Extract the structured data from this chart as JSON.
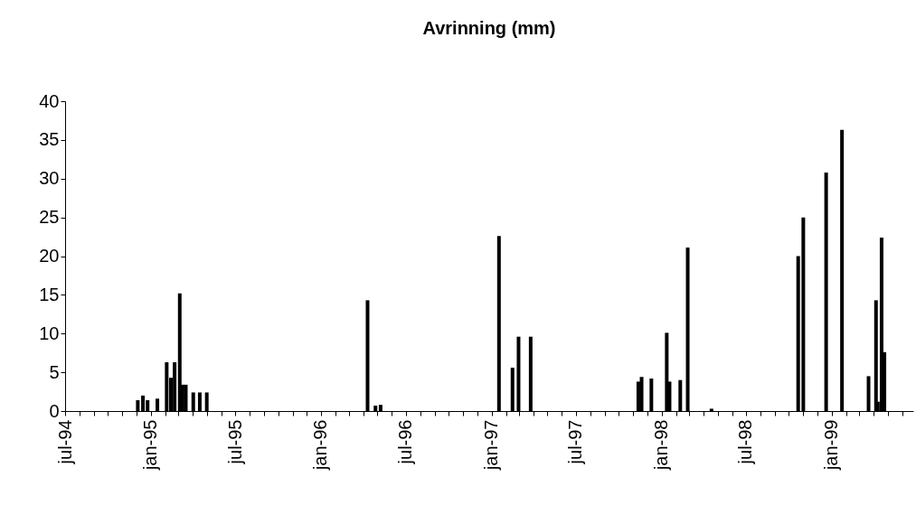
{
  "chart_data": {
    "type": "bar",
    "title": "Avrinning (mm)",
    "x": [
      "1994-12-04",
      "1994-12-15",
      "1994-12-25",
      "1995-01-15",
      "1995-02-04",
      "1995-02-13",
      "1995-02-21",
      "1995-03-04",
      "1995-03-10",
      "1995-03-17",
      "1995-04-02",
      "1995-04-16",
      "1995-05-01",
      "1996-04-10",
      "1996-04-27",
      "1996-05-08",
      "1997-01-17",
      "1997-02-15",
      "1997-02-28",
      "1997-03-26",
      "1997-11-12",
      "1997-11-19",
      "1997-12-10",
      "1998-01-12",
      "1998-01-18",
      "1998-02-10",
      "1998-02-26",
      "1998-04-18",
      "1998-10-21",
      "1998-11-01",
      "1998-12-20",
      "1999-01-23",
      "1999-03-21",
      "1999-04-06",
      "1999-04-10",
      "1999-04-18",
      "1999-04-24"
    ],
    "series": [
      {
        "color": "#000000",
        "values": [
          1.4,
          2.0,
          1.4,
          1.6,
          6.3,
          4.3,
          6.3,
          15.2,
          3.4,
          3.4,
          2.4,
          2.4,
          2.4,
          14.3,
          0.7,
          0.8,
          22.6,
          5.6,
          9.6,
          9.6,
          3.8,
          4.4,
          4.2,
          10.1,
          3.8,
          4.0,
          21.1,
          0.3,
          20.0,
          25.0,
          30.8,
          36.3,
          4.5,
          14.3,
          1.2,
          22.4,
          7.6
        ]
      }
    ],
    "xlim": [
      "1994-07-01",
      "1999-06-25"
    ],
    "xticks": [
      {
        "value": "1994-07-01",
        "label": "jul-94"
      },
      {
        "value": "1994-08-01",
        "label": null
      },
      {
        "value": "1994-09-01",
        "label": null
      },
      {
        "value": "1994-10-01",
        "label": null
      },
      {
        "value": "1994-11-01",
        "label": null
      },
      {
        "value": "1994-12-01",
        "label": null
      },
      {
        "value": "1995-01-01",
        "label": "jan-95"
      },
      {
        "value": "1995-02-01",
        "label": null
      },
      {
        "value": "1995-03-01",
        "label": null
      },
      {
        "value": "1995-04-01",
        "label": null
      },
      {
        "value": "1995-05-01",
        "label": null
      },
      {
        "value": "1995-06-01",
        "label": null
      },
      {
        "value": "1995-07-01",
        "label": "jul-95"
      },
      {
        "value": "1995-08-01",
        "label": null
      },
      {
        "value": "1995-09-01",
        "label": null
      },
      {
        "value": "1995-10-01",
        "label": null
      },
      {
        "value": "1995-11-01",
        "label": null
      },
      {
        "value": "1995-12-01",
        "label": null
      },
      {
        "value": "1996-01-01",
        "label": "jan-96"
      },
      {
        "value": "1996-02-01",
        "label": null
      },
      {
        "value": "1996-03-01",
        "label": null
      },
      {
        "value": "1996-04-01",
        "label": null
      },
      {
        "value": "1996-05-01",
        "label": null
      },
      {
        "value": "1996-06-01",
        "label": null
      },
      {
        "value": "1996-07-01",
        "label": "jul-96"
      },
      {
        "value": "1996-08-01",
        "label": null
      },
      {
        "value": "1996-09-01",
        "label": null
      },
      {
        "value": "1996-10-01",
        "label": null
      },
      {
        "value": "1996-11-01",
        "label": null
      },
      {
        "value": "1996-12-01",
        "label": null
      },
      {
        "value": "1997-01-01",
        "label": "jan-97"
      },
      {
        "value": "1997-02-01",
        "label": null
      },
      {
        "value": "1997-03-01",
        "label": null
      },
      {
        "value": "1997-04-01",
        "label": null
      },
      {
        "value": "1997-05-01",
        "label": null
      },
      {
        "value": "1997-06-01",
        "label": null
      },
      {
        "value": "1997-07-01",
        "label": "jul-97"
      },
      {
        "value": "1997-08-01",
        "label": null
      },
      {
        "value": "1997-09-01",
        "label": null
      },
      {
        "value": "1997-10-01",
        "label": null
      },
      {
        "value": "1997-11-01",
        "label": null
      },
      {
        "value": "1997-12-01",
        "label": null
      },
      {
        "value": "1998-01-01",
        "label": "jan-98"
      },
      {
        "value": "1998-02-01",
        "label": null
      },
      {
        "value": "1998-03-01",
        "label": null
      },
      {
        "value": "1998-04-01",
        "label": null
      },
      {
        "value": "1998-05-01",
        "label": null
      },
      {
        "value": "1998-06-01",
        "label": null
      },
      {
        "value": "1998-07-01",
        "label": "jul-98"
      },
      {
        "value": "1998-08-01",
        "label": null
      },
      {
        "value": "1998-09-01",
        "label": null
      },
      {
        "value": "1998-10-01",
        "label": null
      },
      {
        "value": "1998-11-01",
        "label": null
      },
      {
        "value": "1998-12-01",
        "label": null
      },
      {
        "value": "1999-01-01",
        "label": "jan-99"
      },
      {
        "value": "1999-02-01",
        "label": null
      },
      {
        "value": "1999-03-01",
        "label": null
      },
      {
        "value": "1999-04-01",
        "label": null
      },
      {
        "value": "1999-05-01",
        "label": null
      },
      {
        "value": "1999-06-01",
        "label": null
      }
    ],
    "ylim": [
      0,
      40
    ],
    "yticks": [
      0,
      5,
      10,
      15,
      20,
      25,
      30,
      35,
      40
    ],
    "grid": false
  }
}
